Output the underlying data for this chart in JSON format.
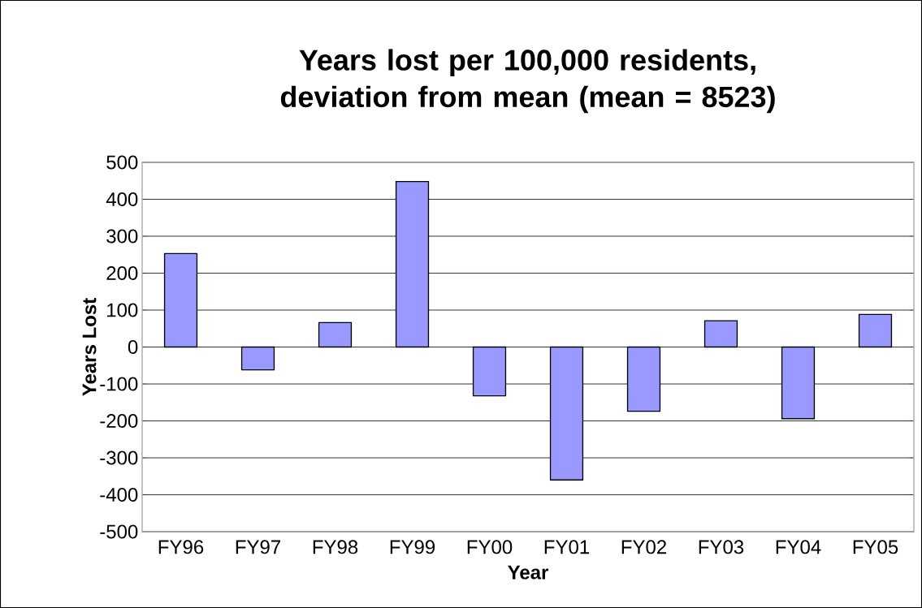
{
  "chart_data": {
    "type": "bar",
    "title": "Years lost per 100,000 residents, deviation from mean (mean = 8523)",
    "xlabel": "Year",
    "ylabel": "Years Lost",
    "categories": [
      "FY96",
      "FY97",
      "FY98",
      "FY99",
      "FY00",
      "FY01",
      "FY02",
      "FY03",
      "FY04",
      "FY05"
    ],
    "values": [
      253,
      -62,
      66,
      448,
      -132,
      -360,
      -174,
      71,
      -194,
      88
    ],
    "color": "#9999ff",
    "ylim": [
      -500,
      500
    ],
    "yticks": [
      -500,
      -400,
      -300,
      -200,
      -100,
      0,
      100,
      200,
      300,
      400,
      500
    ],
    "grid": "y"
  }
}
